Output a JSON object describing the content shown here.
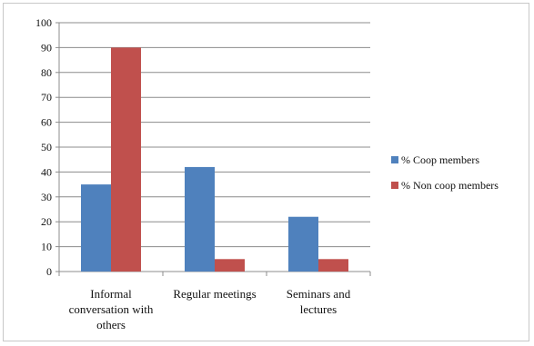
{
  "chart_data": {
    "type": "bar",
    "categories": [
      [
        "Informal",
        "conversation with",
        "others"
      ],
      [
        "Regular meetings"
      ],
      [
        "Seminars and",
        "lectures"
      ]
    ],
    "series": [
      {
        "name": "% Coop members",
        "values": [
          35,
          42,
          22
        ],
        "color": "#4f81bd"
      },
      {
        "name": "% Non coop members",
        "values": [
          90,
          5,
          5
        ],
        "color": "#c0504d"
      }
    ],
    "ylim": [
      0,
      100
    ],
    "yticks": [
      0,
      10,
      20,
      30,
      40,
      50,
      60,
      70,
      80,
      90,
      100
    ],
    "grid": true,
    "legend": "right",
    "title": "",
    "xlabel": "",
    "ylabel": ""
  }
}
